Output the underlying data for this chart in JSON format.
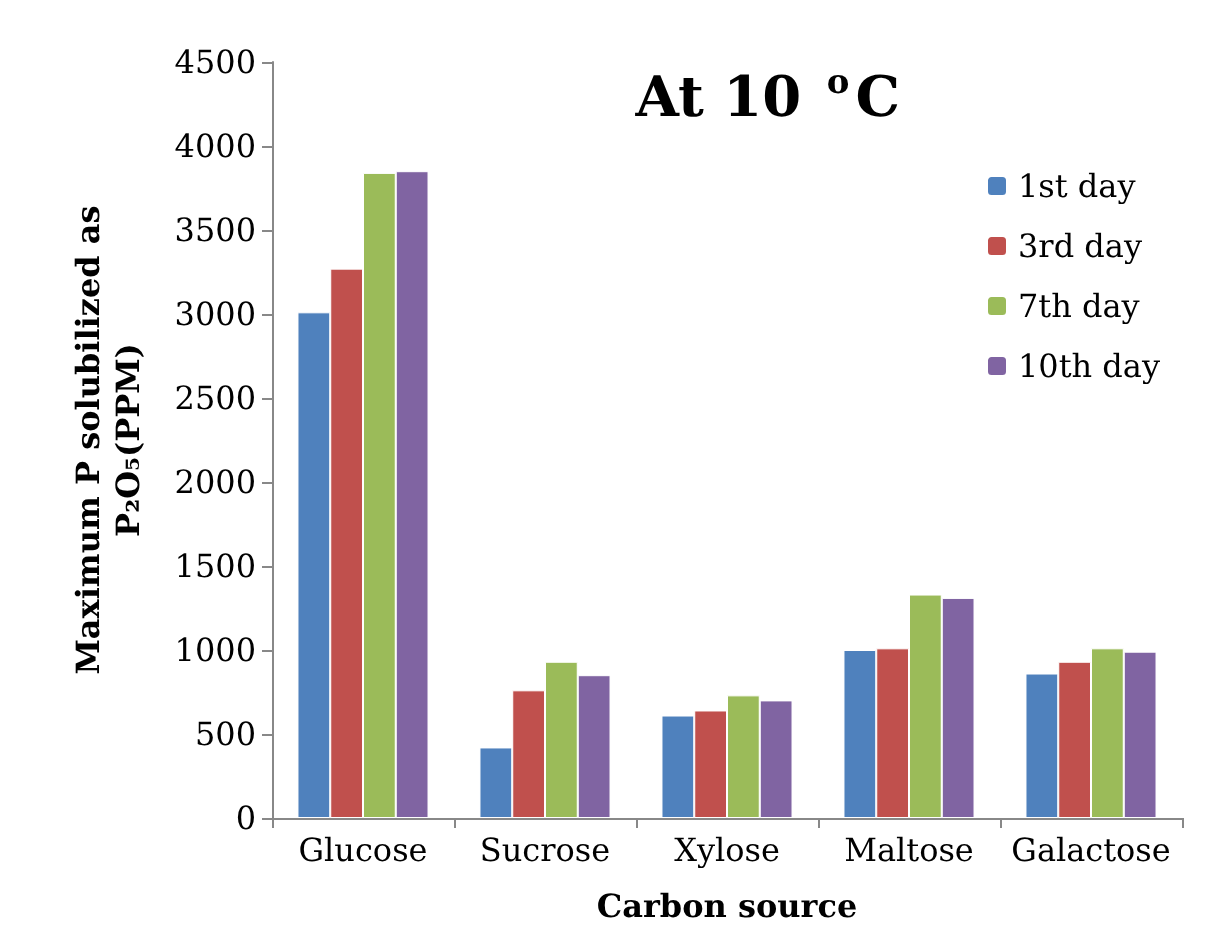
{
  "chart_data": {
    "type": "bar",
    "title": "At 10 $^{o}$C",
    "xlabel": "Carbon source",
    "ylabel": "Maximum P solubilized as\nP₂O₅(PPM)",
    "categories": [
      "Glucose",
      "Sucrose",
      "Xylose",
      "Maltose",
      "Galactose"
    ],
    "series": [
      {
        "name": "1st day",
        "color": "#4f81bd",
        "values": [
          3010,
          420,
          610,
          1000,
          860
        ]
      },
      {
        "name": "3rd day",
        "color": "#c0504d",
        "values": [
          3270,
          760,
          640,
          1010,
          930
        ]
      },
      {
        "name": "7th day",
        "color": "#9bbb59",
        "values": [
          3840,
          930,
          730,
          1330,
          1010
        ]
      },
      {
        "name": "10th day",
        "color": "#8064a2",
        "values": [
          3850,
          850,
          700,
          1310,
          990
        ]
      }
    ],
    "ylim": [
      0,
      4500
    ],
    "yticks": [
      0,
      500,
      1000,
      1500,
      2000,
      2500,
      3000,
      3500,
      4000,
      4500
    ],
    "grid": false,
    "legend": "right"
  }
}
